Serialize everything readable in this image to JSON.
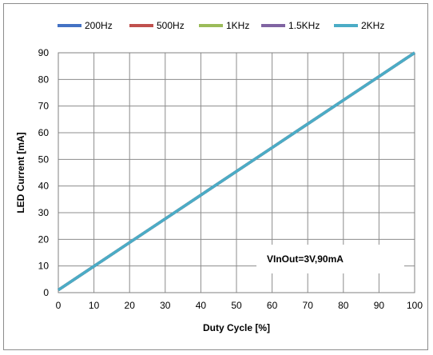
{
  "chart_data": {
    "type": "line",
    "title": "",
    "xlabel": "Duty Cycle [%]",
    "ylabel": "LED Current [mA]",
    "xlim": [
      0,
      100
    ],
    "ylim": [
      0,
      90
    ],
    "x_ticks": [
      0,
      10,
      20,
      30,
      40,
      50,
      60,
      70,
      80,
      90,
      100
    ],
    "y_ticks": [
      0,
      10,
      20,
      30,
      40,
      50,
      60,
      70,
      80,
      90
    ],
    "grid": true,
    "legend_position": "top",
    "annotation": "VInOut=3V,90mA",
    "x": [
      0,
      10,
      20,
      30,
      40,
      50,
      60,
      70,
      80,
      90,
      100
    ],
    "series": [
      {
        "name": "200Hz",
        "color": "#4472c4",
        "values": [
          1,
          9.9,
          18.8,
          27.7,
          36.6,
          45.5,
          54.4,
          63.3,
          72.2,
          81.1,
          90
        ]
      },
      {
        "name": "500Hz",
        "color": "#c0504d",
        "values": [
          1,
          9.9,
          18.8,
          27.7,
          36.6,
          45.5,
          54.4,
          63.3,
          72.2,
          81.1,
          90
        ]
      },
      {
        "name": "1KHz",
        "color": "#9bbb59",
        "values": [
          1,
          9.9,
          18.8,
          27.7,
          36.6,
          45.5,
          54.4,
          63.3,
          72.2,
          81.1,
          90
        ]
      },
      {
        "name": "1.5KHz",
        "color": "#8064a2",
        "values": [
          1,
          9.9,
          18.8,
          27.7,
          36.6,
          45.5,
          54.4,
          63.3,
          72.2,
          81.1,
          90
        ]
      },
      {
        "name": "2KHz",
        "color": "#4bacc6",
        "values": [
          1,
          9.9,
          18.8,
          27.7,
          36.6,
          45.5,
          54.4,
          63.3,
          72.2,
          81.1,
          90
        ]
      }
    ]
  }
}
